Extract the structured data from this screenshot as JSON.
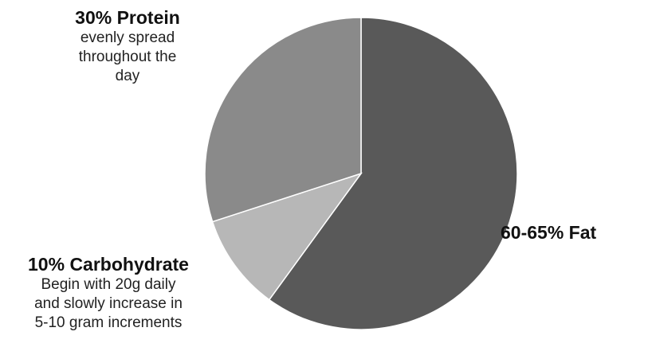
{
  "chart_data": {
    "type": "pie",
    "start_angle": "12 o'clock",
    "direction": "clockwise",
    "slices": [
      {
        "label": "60-65% Fat",
        "value": 60,
        "color": "#595959",
        "description": ""
      },
      {
        "label": "10% Carbohydrate",
        "value": 10,
        "color": "#b7b7b7",
        "description": "Begin with 20g daily and slowly increase in 5-10 gram increments"
      },
      {
        "label": "30% Protein",
        "value": 30,
        "color": "#8a8a8a",
        "description": "evenly spread throughout the day"
      }
    ],
    "legend": "none"
  },
  "labels": {
    "protein_title": "30% Protein",
    "protein_desc_1": "evenly spread",
    "protein_desc_2": "throughout the",
    "protein_desc_3": "day",
    "carb_title": "10% Carbohydrate",
    "carb_desc_1": "Begin with 20g daily",
    "carb_desc_2": "and slowly increase in",
    "carb_desc_3": "5-10 gram increments",
    "fat_title": "60-65% Fat"
  }
}
